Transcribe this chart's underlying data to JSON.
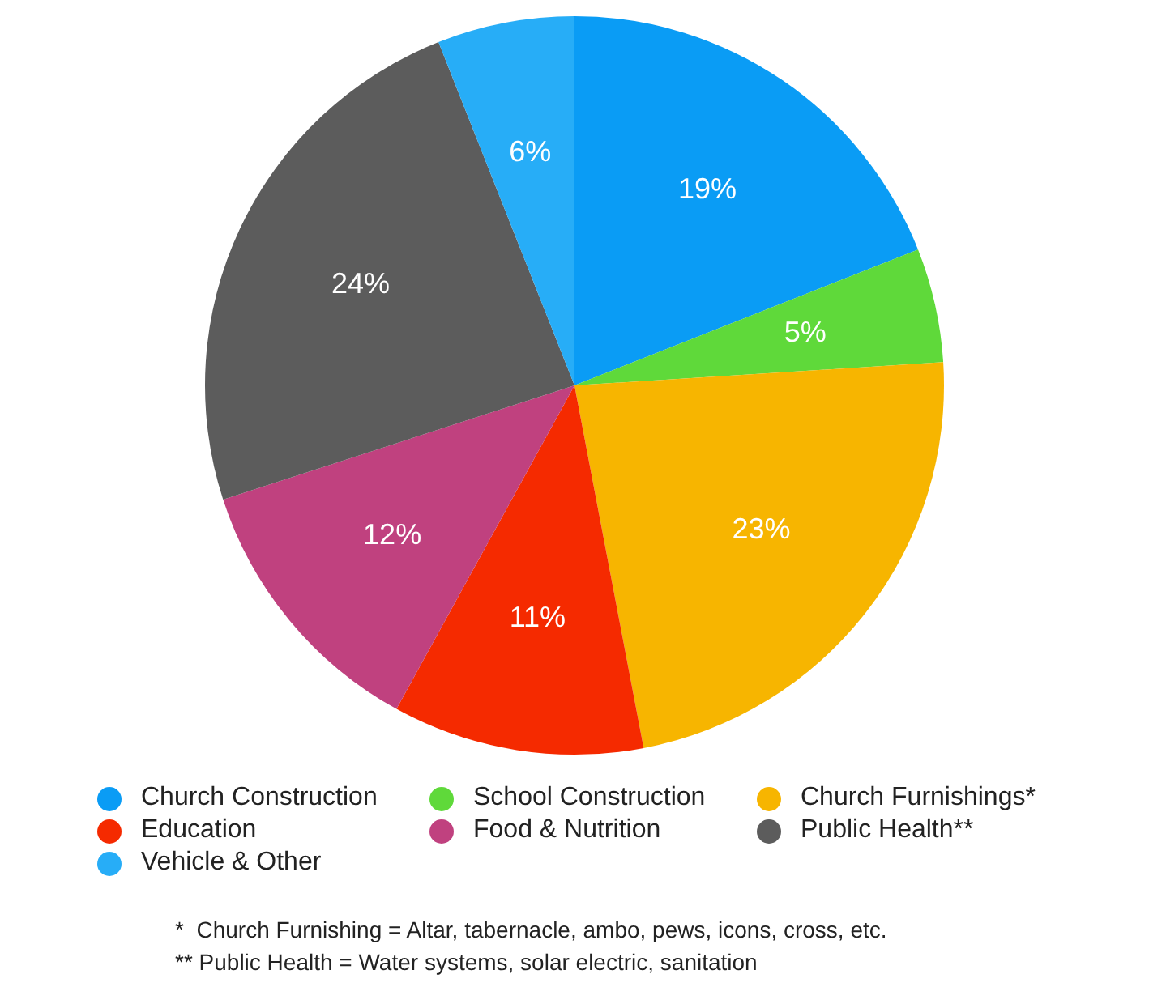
{
  "chart_data": {
    "type": "pie",
    "categories": [
      "Church Construction",
      "School Construction",
      "Church Furnishings*",
      "Education",
      "Food & Nutrition",
      "Public Health**",
      "Vehicle & Other"
    ],
    "values": [
      19,
      5,
      23,
      11,
      12,
      24,
      6
    ],
    "colors": [
      "#0a9cf5",
      "#5fd93a",
      "#f7b500",
      "#f52a00",
      "#c0417f",
      "#5c5c5c",
      "#27adf7"
    ],
    "value_labels": [
      "19%",
      "5%",
      "23%",
      "11%",
      "12%",
      "24%",
      "6%"
    ],
    "legend": "bottom",
    "annotations": [
      "*  Church Furnishing = Altar, tabernacle, ambo, pews, icons, cross, etc.",
      "** Public Health = Water systems, solar electric, sanitation"
    ]
  }
}
